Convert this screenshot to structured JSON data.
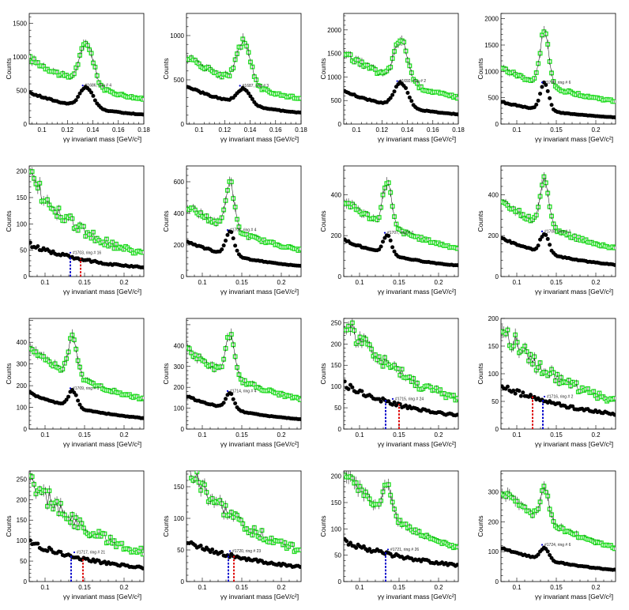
{
  "chart_data": [
    {
      "type": "scatter",
      "xlabel": "γγ invariant mass [GeV/c²]",
      "ylabel": "Counts",
      "xlim": [
        0.09,
        0.18
      ],
      "ylim": [
        0,
        1650
      ],
      "xticks": [
        "0.1",
        "0.12",
        "0.14",
        "0.16",
        "0.18"
      ],
      "yticks": [
        "500",
        "1000",
        "1500"
      ],
      "ytick_values": [
        0,
        500,
        1000,
        1500
      ],
      "peak": 0.135,
      "green_amp": 620,
      "green_base": 880,
      "green_decay": 0.55,
      "black_amp": 300,
      "black_base": 420,
      "black_decay": 0.7,
      "annotation": "#1686, ring # 4",
      "ann_x": 0.132,
      "markers": []
    },
    {
      "type": "scatter",
      "xlabel": "γγ invariant mass [GeV/c²]",
      "ylabel": "Counts",
      "xlim": [
        0.09,
        0.18
      ],
      "ylim": [
        0,
        1250
      ],
      "xticks": [
        "0.1",
        "0.12",
        "0.14",
        "0.16",
        "0.18"
      ],
      "yticks": [
        "500",
        "1000"
      ],
      "ytick_values": [
        0,
        500,
        1000
      ],
      "peak": 0.135,
      "green_amp": 480,
      "green_base": 680,
      "green_decay": 0.55,
      "black_amp": 180,
      "black_base": 380,
      "black_decay": 0.7,
      "annotation": "#1687, ring # 3",
      "ann_x": 0.132,
      "markers": []
    },
    {
      "type": "scatter",
      "xlabel": "γγ invariant mass [GeV/c²]",
      "ylabel": "Counts",
      "xlim": [
        0.09,
        0.18
      ],
      "ylim": [
        0,
        2350
      ],
      "xticks": [
        "0.1",
        "0.12",
        "0.14",
        "0.16",
        "0.18"
      ],
      "yticks": [
        "500",
        "1000",
        "1500",
        "2000"
      ],
      "ytick_values": [
        0,
        500,
        1000,
        1500,
        2000
      ],
      "peak": 0.135,
      "green_amp": 900,
      "green_base": 1350,
      "green_decay": 0.55,
      "black_amp": 520,
      "black_base": 620,
      "black_decay": 0.7,
      "annotation": "#1692, ring # 2",
      "ann_x": 0.132,
      "markers": []
    },
    {
      "type": "scatter",
      "xlabel": "γγ invariant mass [GeV/c²]",
      "ylabel": "Counts",
      "xlim": [
        0.08,
        0.225
      ],
      "ylim": [
        0,
        2100
      ],
      "xticks": [
        "0.1",
        "0.15",
        "0.2"
      ],
      "yticks": [
        "500",
        "1000",
        "1500",
        "2000"
      ],
      "ytick_values": [
        0,
        500,
        1000,
        1500,
        2000
      ],
      "peak": 0.135,
      "green_amp": 1050,
      "green_base": 950,
      "green_decay": 0.5,
      "black_amp": 520,
      "black_base": 380,
      "black_decay": 0.7,
      "annotation": "#1700, ring # 6",
      "ann_x": 0.132,
      "markers": []
    },
    {
      "type": "scatter",
      "xlabel": "γγ invariant mass [GeV/c²]",
      "ylabel": "Counts",
      "xlim": [
        0.08,
        0.225
      ],
      "ylim": [
        0,
        210
      ],
      "xticks": [
        "0.1",
        "0.15",
        "0.2"
      ],
      "yticks": [
        "50",
        "100",
        "150",
        "200"
      ],
      "ytick_values": [
        0,
        50,
        100,
        150,
        200
      ],
      "peak": 0.135,
      "green_amp": 0,
      "green_base": 170,
      "green_decay": 0.9,
      "black_amp": 0,
      "black_base": 55,
      "black_decay": 0.75,
      "annotation": "#1703, ring # 16",
      "ann_x": 0.132,
      "markers": [
        {
          "x": 0.132,
          "color": "#0000cc"
        },
        {
          "x": 0.145,
          "color": "#dd0000"
        }
      ]
    },
    {
      "type": "scatter",
      "xlabel": "γγ invariant mass [GeV/c²]",
      "ylabel": "Counts",
      "xlim": [
        0.08,
        0.225
      ],
      "ylim": [
        0,
        700
      ],
      "xticks": [
        "0.1",
        "0.15",
        "0.2"
      ],
      "yticks": [
        "200",
        "400",
        "600"
      ],
      "ytick_values": [
        0,
        200,
        400,
        600
      ],
      "peak": 0.135,
      "green_amp": 300,
      "green_base": 400,
      "green_decay": 0.55,
      "black_amp": 150,
      "black_base": 200,
      "black_decay": 0.7,
      "annotation": "#1706, ring # 4",
      "ann_x": 0.132,
      "markers": []
    },
    {
      "type": "scatter",
      "xlabel": "γγ invariant mass [GeV/c²]",
      "ylabel": "Counts",
      "xlim": [
        0.08,
        0.225
      ],
      "ylim": [
        0,
        540
      ],
      "xticks": [
        "0.1",
        "0.15",
        "0.2"
      ],
      "yticks": [
        "200",
        "400"
      ],
      "ytick_values": [
        0,
        200,
        400
      ],
      "peak": 0.135,
      "green_amp": 220,
      "green_base": 330,
      "green_decay": 0.55,
      "black_amp": 95,
      "black_base": 160,
      "black_decay": 0.7,
      "annotation": "#1707, ring # 1",
      "ann_x": 0.132,
      "markers": []
    },
    {
      "type": "scatter",
      "xlabel": "γγ invariant mass [GeV/c²]",
      "ylabel": "Counts",
      "xlim": [
        0.08,
        0.225
      ],
      "ylim": [
        0,
        540
      ],
      "xticks": [
        "0.1",
        "0.15",
        "0.2"
      ],
      "yticks": [
        "200",
        "400"
      ],
      "ytick_values": [
        0,
        200,
        400
      ],
      "peak": 0.135,
      "green_amp": 230,
      "green_base": 330,
      "green_decay": 0.55,
      "black_amp": 95,
      "black_base": 170,
      "black_decay": 0.7,
      "annotation": "#1708, ring # 1",
      "ann_x": 0.132,
      "markers": []
    },
    {
      "type": "scatter",
      "xlabel": "γγ invariant mass [GeV/c²]",
      "ylabel": "Counts",
      "xlim": [
        0.08,
        0.225
      ],
      "ylim": [
        0,
        510
      ],
      "xticks": [
        "0.1",
        "0.15",
        "0.2"
      ],
      "yticks": [
        "100",
        "200",
        "300",
        "400"
      ],
      "ytick_values": [
        0,
        100,
        200,
        300,
        400
      ],
      "peak": 0.135,
      "green_amp": 190,
      "green_base": 330,
      "green_decay": 0.55,
      "black_amp": 75,
      "black_base": 150,
      "black_decay": 0.7,
      "annotation": "#1709, ring # 1",
      "ann_x": 0.132,
      "markers": []
    },
    {
      "type": "scatter",
      "xlabel": "γγ invariant mass [GeV/c²]",
      "ylabel": "Counts",
      "xlim": [
        0.08,
        0.225
      ],
      "ylim": [
        0,
        530
      ],
      "xticks": [
        "0.1",
        "0.15",
        "0.2"
      ],
      "yticks": [
        "100",
        "200",
        "300",
        "400"
      ],
      "ytick_values": [
        0,
        100,
        200,
        300,
        400
      ],
      "peak": 0.135,
      "green_amp": 200,
      "green_base": 340,
      "green_decay": 0.55,
      "black_amp": 75,
      "black_base": 140,
      "black_decay": 0.7,
      "annotation": "#1714, ring # 4",
      "ann_x": 0.132,
      "markers": []
    },
    {
      "type": "scatter",
      "xlabel": "γγ invariant mass [GeV/c²]",
      "ylabel": "Counts",
      "xlim": [
        0.08,
        0.225
      ],
      "ylim": [
        0,
        260
      ],
      "xticks": [
        "0.1",
        "0.15",
        "0.2"
      ],
      "yticks": [
        "50",
        "100",
        "150",
        "200",
        "250"
      ],
      "ytick_values": [
        0,
        50,
        100,
        150,
        200,
        250
      ],
      "peak": 0.135,
      "green_amp": 0,
      "green_base": 230,
      "green_decay": 0.75,
      "black_amp": 0,
      "black_base": 95,
      "black_decay": 0.7,
      "annotation": "#1715, ring # 24",
      "ann_x": 0.142,
      "markers": [
        {
          "x": 0.133,
          "color": "#0000cc"
        },
        {
          "x": 0.15,
          "color": "#dd0000"
        }
      ]
    },
    {
      "type": "scatter",
      "xlabel": "γγ invariant mass [GeV/c²]",
      "ylabel": "Counts",
      "xlim": [
        0.08,
        0.225
      ],
      "ylim": [
        0,
        200
      ],
      "xticks": [
        "0.1",
        "0.15",
        "0.2"
      ],
      "yticks": [
        "50",
        "100",
        "150",
        "200"
      ],
      "ytick_values": [
        0,
        50,
        100,
        150,
        200
      ],
      "peak": 0.135,
      "green_amp": 0,
      "green_base": 165,
      "green_decay": 0.75,
      "black_amp": 0,
      "black_base": 70,
      "black_decay": 0.6,
      "annotation": "#1716, ring # 2",
      "ann_x": 0.135,
      "markers": [
        {
          "x": 0.12,
          "color": "#dd0000"
        },
        {
          "x": 0.133,
          "color": "#0000cc"
        }
      ]
    },
    {
      "type": "scatter",
      "xlabel": "γγ invariant mass [GeV/c²]",
      "ylabel": "Counts",
      "xlim": [
        0.08,
        0.225
      ],
      "ylim": [
        0,
        270
      ],
      "xticks": [
        "0.1",
        "0.15",
        "0.2"
      ],
      "yticks": [
        "50",
        "100",
        "150",
        "200",
        "250"
      ],
      "ytick_values": [
        0,
        50,
        100,
        150,
        200,
        250
      ],
      "peak": 0.135,
      "green_amp": 0,
      "green_base": 230,
      "green_decay": 0.75,
      "black_amp": 0,
      "black_base": 85,
      "black_decay": 0.6,
      "annotation": "#1717, ring # 21",
      "ann_x": 0.137,
      "markers": [
        {
          "x": 0.133,
          "color": "#0000cc"
        },
        {
          "x": 0.148,
          "color": "#dd0000"
        }
      ]
    },
    {
      "type": "scatter",
      "xlabel": "γγ invariant mass [GeV/c²]",
      "ylabel": "Counts",
      "xlim": [
        0.08,
        0.225
      ],
      "ylim": [
        0,
        175
      ],
      "xticks": [
        "0.1",
        "0.15",
        "0.2"
      ],
      "yticks": [
        "50",
        "100",
        "150"
      ],
      "ytick_values": [
        0,
        50,
        100,
        150
      ],
      "peak": 0.135,
      "green_amp": 0,
      "green_base": 160,
      "green_decay": 0.75,
      "black_amp": 0,
      "black_base": 55,
      "black_decay": 0.55,
      "annotation": "#1720, ring # 23",
      "ann_x": 0.135,
      "markers": [
        {
          "x": 0.133,
          "color": "#0000cc"
        },
        {
          "x": 0.14,
          "color": "#dd0000"
        }
      ]
    },
    {
      "type": "scatter",
      "xlabel": "γγ invariant mass [GeV/c²]",
      "ylabel": "Counts",
      "xlim": [
        0.08,
        0.225
      ],
      "ylim": [
        0,
        210
      ],
      "xticks": [
        "0.1",
        "0.15",
        "0.2"
      ],
      "yticks": [
        "50",
        "100",
        "150",
        "200"
      ],
      "ytick_values": [
        0,
        50,
        100,
        150,
        200
      ],
      "peak": 0.135,
      "green_amp": 60,
      "green_base": 190,
      "green_decay": 0.7,
      "black_amp": 0,
      "black_base": 68,
      "black_decay": 0.5,
      "annotation": "#1721, ring # 26",
      "ann_x": 0.136,
      "markers": [
        {
          "x": 0.133,
          "color": "#0000cc"
        }
      ]
    },
    {
      "type": "scatter",
      "xlabel": "γγ invariant mass [GeV/c²]",
      "ylabel": "Counts",
      "xlim": [
        0.08,
        0.225
      ],
      "ylim": [
        0,
        370
      ],
      "xticks": [
        "0.1",
        "0.15",
        "0.2"
      ],
      "yticks": [
        "100",
        "200",
        "300"
      ],
      "ytick_values": [
        0,
        100,
        200,
        300
      ],
      "peak": 0.135,
      "green_amp": 110,
      "green_base": 270,
      "green_decay": 0.55,
      "black_amp": 40,
      "black_base": 100,
      "black_decay": 0.6,
      "annotation": "#1724, ring # 6",
      "ann_x": 0.132,
      "markers": []
    }
  ]
}
